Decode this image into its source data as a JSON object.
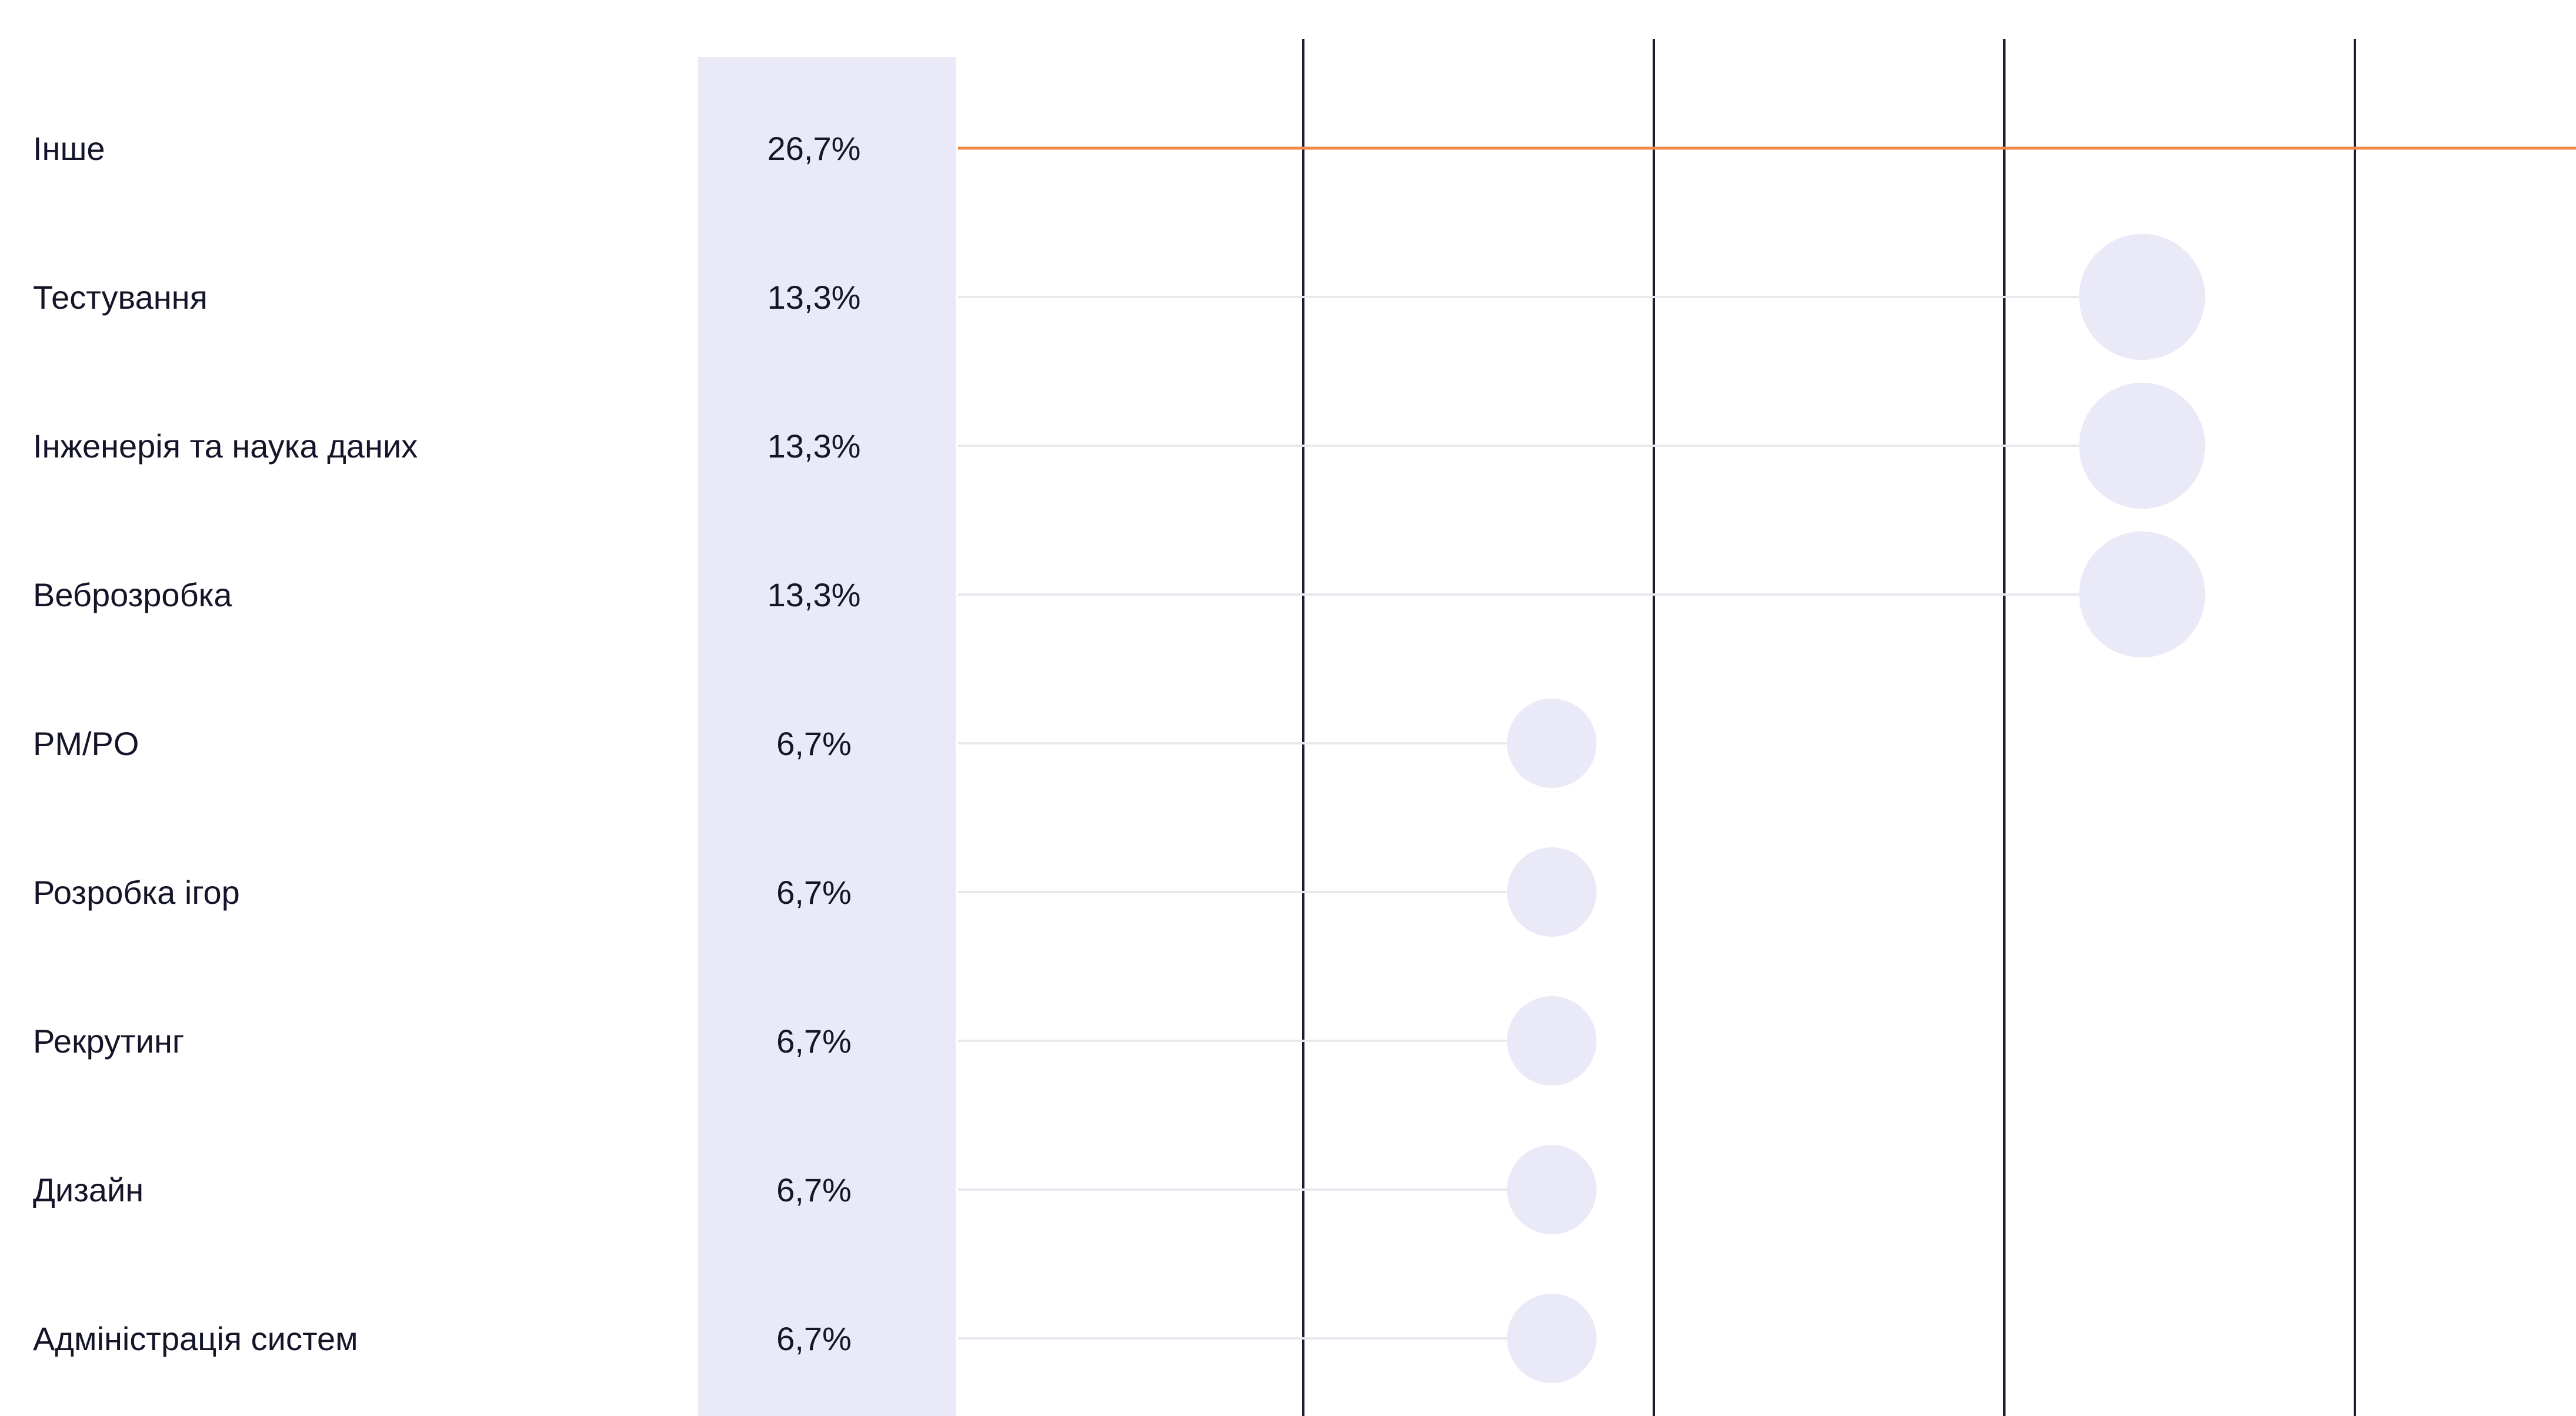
{
  "chart_data": {
    "type": "scatter",
    "title": "",
    "xlabel": "",
    "ylabel": "",
    "categories": [
      "Інше",
      "Тестування",
      "Інженерія та наука даних",
      "Веброзробка",
      "PM/PO",
      "Розробка ігор",
      "Рекрутинг",
      "Дизайн",
      "Адміністрація систем"
    ],
    "values": [
      26.7,
      13.3,
      13.3,
      13.3,
      6.7,
      6.7,
      6.7,
      6.7,
      6.7
    ],
    "value_labels": [
      "26,7%",
      "13,3%",
      "13,3%",
      "13,3%",
      "6,7%",
      "6,7%",
      "6,7%",
      "6,7%",
      "6,7%"
    ],
    "xlim": [
      0,
      30
    ],
    "grid": true,
    "highlight_index": 0,
    "colors": {
      "highlight": "#ff8540",
      "bubble": "#eae9f7",
      "value_column": "#eae9f7",
      "gridline": "#1c1c33",
      "connector": "#e8e8ef",
      "connector_highlight": "#f0894a",
      "text": "#15152a"
    }
  }
}
